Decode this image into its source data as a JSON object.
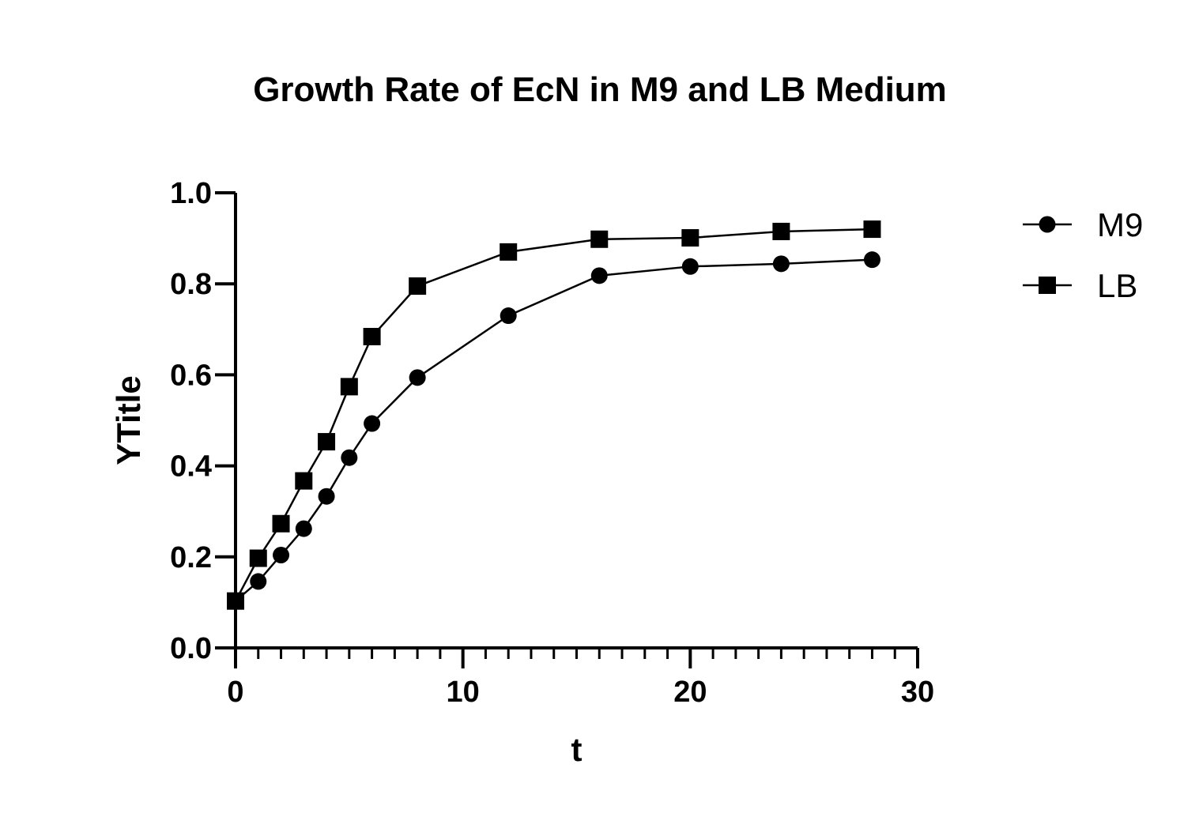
{
  "chart_data": {
    "type": "line",
    "title": "Growth Rate of EcN in M9 and LB Medium",
    "xlabel": "t",
    "ylabel": "YTitle",
    "xlim": [
      0,
      30
    ],
    "ylim": [
      0,
      1.0
    ],
    "x_major_ticks": [
      0,
      10,
      20,
      30
    ],
    "x_tick_labels": [
      "0",
      "10",
      "20",
      "30"
    ],
    "x_minor_step": 1,
    "y_ticks": [
      0.0,
      0.2,
      0.4,
      0.6,
      0.8,
      1.0
    ],
    "y_tick_labels": [
      "0.0",
      "0.2",
      "0.4",
      "0.6",
      "0.8",
      "1.0"
    ],
    "grid": false,
    "legend_position": "top-right, outside plot area",
    "series": [
      {
        "name": "M9",
        "marker": "circle",
        "color": "#000000",
        "x": [
          0,
          1,
          2,
          3,
          4,
          5,
          6,
          8,
          12,
          16,
          20,
          24,
          28
        ],
        "y": [
          0.103,
          0.146,
          0.204,
          0.262,
          0.333,
          0.418,
          0.493,
          0.594,
          0.73,
          0.818,
          0.838,
          0.844,
          0.853
        ]
      },
      {
        "name": "LB",
        "marker": "square",
        "color": "#000000",
        "x": [
          0,
          1,
          2,
          3,
          4,
          5,
          6,
          8,
          12,
          16,
          20,
          24,
          28
        ],
        "y": [
          0.103,
          0.197,
          0.273,
          0.367,
          0.453,
          0.574,
          0.684,
          0.795,
          0.87,
          0.898,
          0.901,
          0.915,
          0.92
        ]
      }
    ]
  }
}
